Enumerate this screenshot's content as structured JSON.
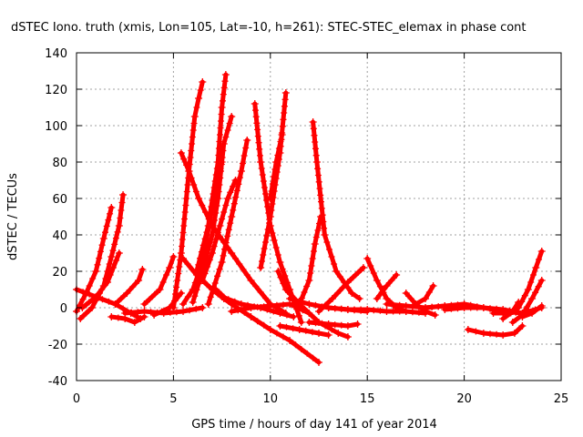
{
  "chart_data": {
    "type": "scatter",
    "title": "dSTEC Iono. truth (xmis, Lon=105, Lat=-10, h=261): STEC-STEC_elemax in phase cont",
    "xlabel": "GPS time / hours of day 141 of year 2014",
    "ylabel": "dSTEC  / TECUs",
    "xlim": [
      0,
      25
    ],
    "ylim": [
      -40,
      140
    ],
    "xticks": [
      "0",
      "5",
      "10",
      "15",
      "20",
      "25"
    ],
    "yticks": [
      "-40",
      "-20",
      "0",
      "20",
      "40",
      "60",
      "80",
      "100",
      "120",
      "140"
    ],
    "grid": true,
    "marker": "plus",
    "color": "#ff0000",
    "series": [
      {
        "x": [
          0.0,
          0.5,
          1.0,
          1.4,
          1.8
        ],
        "y": [
          -2,
          8,
          20,
          38,
          55
        ]
      },
      {
        "x": [
          0.2,
          0.8,
          1.4,
          1.8,
          2.2,
          2.4
        ],
        "y": [
          -6,
          0,
          12,
          28,
          45,
          62
        ]
      },
      {
        "x": [
          0.3,
          1.0,
          1.6,
          2.2
        ],
        "y": [
          0,
          6,
          14,
          30
        ]
      },
      {
        "x": [
          0.0,
          1.0,
          2.0,
          2.8,
          3.3
        ],
        "y": [
          10,
          6,
          2,
          -3,
          -6
        ]
      },
      {
        "x": [
          1.8,
          2.5,
          3.0,
          3.5
        ],
        "y": [
          -5,
          -6,
          -8,
          -5
        ]
      },
      {
        "x": [
          2.0,
          2.6,
          3.2,
          3.4
        ],
        "y": [
          2,
          8,
          15,
          21
        ]
      },
      {
        "x": [
          2.5,
          3.5,
          4.5,
          5.5,
          6.5
        ],
        "y": [
          -3,
          -2,
          -3,
          -2,
          0
        ]
      },
      {
        "x": [
          3.5,
          4.3,
          4.8,
          5.0
        ],
        "y": [
          2,
          10,
          22,
          28
        ]
      },
      {
        "x": [
          4.0,
          4.8,
          5.4
        ],
        "y": [
          -4,
          0,
          8
        ]
      },
      {
        "x": [
          5.0,
          5.4,
          5.8,
          6.1,
          6.3,
          6.5
        ],
        "y": [
          0,
          30,
          75,
          105,
          115,
          124
        ]
      },
      {
        "x": [
          5.4,
          5.8,
          6.3,
          7.0,
          8.0,
          9.0,
          10.0,
          10.8
        ],
        "y": [
          85,
          75,
          60,
          45,
          30,
          15,
          2,
          -3
        ]
      },
      {
        "x": [
          5.5,
          6.0,
          6.5,
          7.0,
          7.5
        ],
        "y": [
          2,
          10,
          25,
          55,
          80
        ]
      },
      {
        "x": [
          5.5,
          6.2,
          7.0,
          7.6,
          8.0
        ],
        "y": [
          27,
          18,
          10,
          5,
          2
        ]
      },
      {
        "x": [
          6.0,
          6.5,
          7.0,
          7.3,
          7.6,
          8.0
        ],
        "y": [
          3,
          20,
          40,
          60,
          90,
          105
        ]
      },
      {
        "x": [
          6.2,
          6.8,
          7.3,
          7.5,
          7.7
        ],
        "y": [
          20,
          45,
          80,
          110,
          128
        ]
      },
      {
        "x": [
          6.5,
          7.0,
          7.4,
          7.8,
          8.2
        ],
        "y": [
          15,
          30,
          45,
          60,
          70
        ]
      },
      {
        "x": [
          6.8,
          7.5,
          8.0,
          8.5,
          8.8
        ],
        "y": [
          2,
          25,
          50,
          75,
          92
        ]
      },
      {
        "x": [
          7.2,
          8.0,
          9.0,
          10.0,
          11.0,
          12.5
        ],
        "y": [
          10,
          2,
          -5,
          -12,
          -18,
          -30
        ]
      },
      {
        "x": [
          7.5,
          8.5,
          9.5,
          10.5,
          11.2
        ],
        "y": [
          6,
          2,
          0,
          -3,
          -5
        ]
      },
      {
        "x": [
          8.0,
          9.0,
          10.0,
          11.0,
          12.0
        ],
        "y": [
          -2,
          0,
          1,
          2,
          -3
        ]
      },
      {
        "x": [
          9.2,
          9.5,
          10.0,
          10.5,
          11.0,
          11.6
        ],
        "y": [
          112,
          80,
          45,
          25,
          10,
          -8
        ]
      },
      {
        "x": [
          9.5,
          10.0,
          10.5,
          10.8
        ],
        "y": [
          22,
          50,
          85,
          118
        ]
      },
      {
        "x": [
          10.0,
          10.3,
          10.6
        ],
        "y": [
          60,
          80,
          95
        ]
      },
      {
        "x": [
          10.4,
          10.8,
          11.5,
          12.5,
          13.5,
          14.0
        ],
        "y": [
          20,
          10,
          2,
          -8,
          -14,
          -16
        ]
      },
      {
        "x": [
          10.5,
          11.5,
          12.5,
          13.0
        ],
        "y": [
          -10,
          -12,
          -14,
          -15
        ]
      },
      {
        "x": [
          11.0,
          12.0,
          13.0,
          14.0,
          15.0
        ],
        "y": [
          5,
          2,
          0,
          -1,
          -2
        ]
      },
      {
        "x": [
          12.2,
          12.4,
          12.8,
          13.4,
          14.2,
          14.6
        ],
        "y": [
          102,
          80,
          40,
          20,
          8,
          5
        ]
      },
      {
        "x": [
          11.5,
          12.0,
          12.3,
          12.6
        ],
        "y": [
          2,
          15,
          35,
          50
        ]
      },
      {
        "x": [
          12.0,
          13.0,
          14.0,
          14.5
        ],
        "y": [
          -8,
          -9,
          -10,
          -9
        ]
      },
      {
        "x": [
          12.5,
          13.2,
          14.0,
          14.8
        ],
        "y": [
          -2,
          5,
          14,
          22
        ]
      },
      {
        "x": [
          13.0,
          14.0,
          15.0,
          16.0,
          17.0,
          18.0
        ],
        "y": [
          0,
          -1,
          -1,
          -2,
          -2,
          -3
        ]
      },
      {
        "x": [
          15.0,
          15.5,
          16.0,
          16.5,
          17.0
        ],
        "y": [
          27,
          15,
          5,
          0,
          -2
        ]
      },
      {
        "x": [
          15.5,
          16.0,
          16.5
        ],
        "y": [
          5,
          12,
          18
        ]
      },
      {
        "x": [
          16.0,
          17.0,
          18.0,
          19.0
        ],
        "y": [
          2,
          1,
          0,
          1
        ]
      },
      {
        "x": [
          17.0,
          17.5,
          18.0,
          18.5
        ],
        "y": [
          8,
          2,
          -2,
          -4
        ]
      },
      {
        "x": [
          17.5,
          18.0,
          18.4
        ],
        "y": [
          2,
          5,
          12
        ]
      },
      {
        "x": [
          18.0,
          19.0,
          20.0,
          21.0,
          22.0,
          23.0
        ],
        "y": [
          0,
          1,
          2,
          0,
          -2,
          -3
        ]
      },
      {
        "x": [
          19.0,
          20.0,
          21.0,
          22.0,
          23.0,
          24.0
        ],
        "y": [
          -1,
          0,
          0,
          -1,
          -3,
          0
        ]
      },
      {
        "x": [
          20.2,
          21.0,
          22.0,
          22.6,
          23.0
        ],
        "y": [
          -12,
          -14,
          -15,
          -14,
          -10
        ]
      },
      {
        "x": [
          21.5,
          22.0,
          22.5,
          22.8
        ],
        "y": [
          -3,
          -3,
          -2,
          3
        ]
      },
      {
        "x": [
          22.0,
          22.8,
          23.3,
          23.7,
          24.0
        ],
        "y": [
          -6,
          0,
          10,
          22,
          31
        ]
      },
      {
        "x": [
          22.5,
          23.0,
          23.5,
          24.0
        ],
        "y": [
          -8,
          -4,
          5,
          15
        ]
      },
      {
        "x": [
          23.0,
          23.5,
          24.0
        ],
        "y": [
          -5,
          -3,
          1
        ]
      }
    ]
  }
}
